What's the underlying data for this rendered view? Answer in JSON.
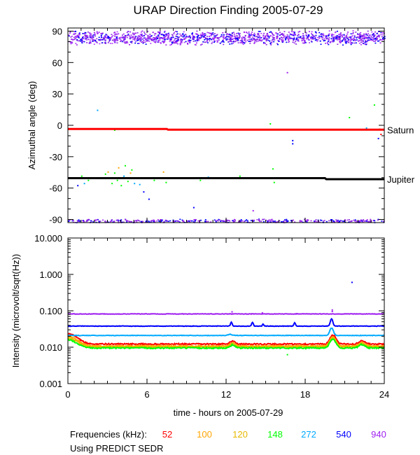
{
  "title": "URAP Direction Finding  2005-07-29",
  "footer": {
    "frequencies_label": "Frequencies (kHz):",
    "note": "Using PREDICT SEDR"
  },
  "chart_data": [
    {
      "type": "scatter",
      "name": "azimuth",
      "ylabel": "Azimuthal angle (deg)",
      "ylim": [
        -93,
        93
      ],
      "yticks": [
        "90",
        "60",
        "30",
        "0",
        "-30",
        "-60",
        "-90"
      ],
      "ytick_values": [
        90,
        60,
        30,
        0,
        -30,
        -60,
        -90
      ],
      "xlim": [
        0,
        24
      ],
      "reference_lines": [
        {
          "name": "Saturn",
          "color": "#ff0000",
          "points": [
            [
              0,
              -3.5
            ],
            [
              7.5,
              -3.5
            ],
            [
              7.6,
              -4.2
            ],
            [
              24,
              -4.2
            ]
          ]
        },
        {
          "name": "Jupiter",
          "color": "#000000",
          "points": [
            [
              0,
              -50.5
            ],
            [
              19.5,
              -50.5
            ],
            [
              19.6,
              -51.5
            ],
            [
              24,
              -51.5
            ]
          ]
        }
      ],
      "band_top": {
        "center": 84,
        "spread": 7,
        "colors": [
          "#a020f0",
          "#8a2be2",
          "#b040ff",
          "#0000ff"
        ]
      },
      "band_bottom": {
        "center": -91,
        "spread": 2,
        "colors": [
          "#a020f0",
          "#0000ff",
          "#8a2be2"
        ]
      },
      "scatter_points": [
        [
          2.2,
          15,
          "#00aaff"
        ],
        [
          3.5,
          -4,
          "#00ff00"
        ],
        [
          16.6,
          51,
          "#a020f0"
        ],
        [
          15.3,
          2,
          "#00ff00"
        ],
        [
          17.0,
          -14,
          "#0000ff"
        ],
        [
          17.0,
          -17,
          "#0000ff"
        ],
        [
          21.3,
          8,
          "#00ff00"
        ],
        [
          23.6,
          -3,
          "#ffa500"
        ],
        [
          23.5,
          -12,
          "#0000ff"
        ],
        [
          23.2,
          20,
          "#00ff00"
        ],
        [
          22.6,
          -2,
          "#00aaff"
        ],
        [
          23.7,
          -8,
          "#ff0000"
        ],
        [
          1.0,
          -48,
          "#00ff00"
        ],
        [
          1.2,
          -55,
          "#00aaff"
        ],
        [
          0.7,
          -57,
          "#0000ff"
        ],
        [
          1.5,
          -52,
          "#00ff00"
        ],
        [
          2.8,
          -46,
          "#00ff00"
        ],
        [
          3.0,
          -44,
          "#ffa500"
        ],
        [
          3.2,
          -50,
          "#00ff00"
        ],
        [
          3.3,
          -55,
          "#00ff00"
        ],
        [
          3.5,
          -45,
          "#00ff00"
        ],
        [
          3.7,
          -52,
          "#00ff00"
        ],
        [
          3.8,
          -40,
          "#ffa500"
        ],
        [
          4.0,
          -57,
          "#00ff00"
        ],
        [
          4.2,
          -48,
          "#00aaff"
        ],
        [
          4.3,
          -38,
          "#00ff00"
        ],
        [
          4.5,
          -53,
          "#00ff00"
        ],
        [
          4.7,
          -45,
          "#ffa500"
        ],
        [
          4.8,
          -42,
          "#00ff00"
        ],
        [
          5.0,
          -55,
          "#00aaff"
        ],
        [
          5.2,
          -50,
          "#00ff00"
        ],
        [
          5.4,
          -56,
          "#00aaff"
        ],
        [
          5.7,
          -63,
          "#0000ff"
        ],
        [
          6.1,
          -70,
          "#0000ff"
        ],
        [
          6.5,
          -52,
          "#00ff00"
        ],
        [
          7.2,
          -44,
          "#ffa500"
        ],
        [
          7.4,
          -54,
          "#00ff00"
        ],
        [
          10.0,
          -52,
          "#00ff00"
        ],
        [
          10.6,
          -49,
          "#00aaff"
        ],
        [
          13.0,
          -48,
          "#00ff00"
        ],
        [
          15.5,
          -41,
          "#00ff00"
        ],
        [
          15.6,
          -54,
          "#00ff00"
        ],
        [
          9.5,
          -78,
          "#0000ff"
        ],
        [
          14.0,
          -81,
          "#a020f0"
        ]
      ]
    },
    {
      "type": "line",
      "name": "intensity",
      "yscale": "log",
      "ylabel": "Intensity (microvolt/sqrt(Hz))",
      "ylim": [
        0.001,
        10
      ],
      "yticks": [
        "10.000",
        "1.000",
        "0.100",
        "0.010",
        "0.001"
      ],
      "ytick_values": [
        10,
        1,
        0.1,
        0.01,
        0.001
      ],
      "xlim": [
        0,
        24
      ],
      "xticks": [
        "0",
        "6",
        "12",
        "18",
        "24"
      ],
      "xtick_values": [
        0,
        6,
        12,
        18,
        24
      ],
      "xlabel": "time - hours on 2005-07-29",
      "series": [
        {
          "name": "52",
          "color": "#ff0000",
          "base": 0.0122
        },
        {
          "name": "100",
          "color": "#ffa500",
          "base": 0.0108
        },
        {
          "name": "120",
          "color": "#e6b800",
          "base": 0.0102
        },
        {
          "name": "148",
          "color": "#00ff00",
          "base": 0.0095
        },
        {
          "name": "272",
          "color": "#00aaff",
          "base": 0.021
        },
        {
          "name": "540",
          "color": "#0000ff",
          "base": 0.038
        },
        {
          "name": "940",
          "color": "#a020f0",
          "base": 0.082
        }
      ],
      "isolated_points": [
        [
          21.5,
          0.63,
          "#0000ff"
        ],
        [
          12.4,
          0.085,
          "#a020f0"
        ],
        [
          12.4,
          0.098,
          "#a020f0"
        ],
        [
          14.7,
          0.092,
          "#a020f0"
        ],
        [
          17.3,
          0.087,
          "#a020f0"
        ],
        [
          20.0,
          0.1,
          "#a020f0"
        ],
        [
          20.0,
          0.11,
          "#a020f0"
        ],
        [
          16.6,
          0.0065,
          "#00ff00"
        ]
      ]
    }
  ]
}
